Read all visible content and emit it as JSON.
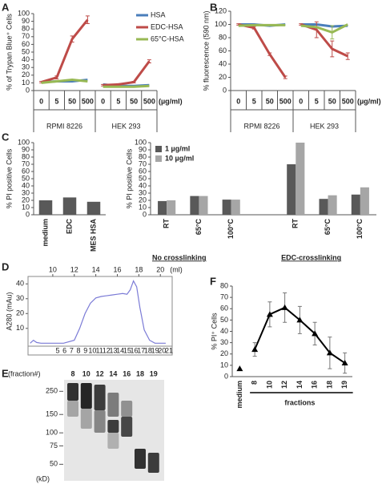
{
  "chart_data": [
    {
      "panel": "A",
      "type": "line",
      "ylabel": "% of Trypan Blue⁺ Cells",
      "categories": [
        "0",
        "5",
        "50",
        "500",
        "0",
        "5",
        "50",
        "500"
      ],
      "groups": [
        "RPMI 8226",
        "HEK 293"
      ],
      "unit": "(µg/ml)",
      "ylim": [
        0,
        100
      ],
      "yticks": [
        0,
        10,
        20,
        30,
        40,
        50,
        60,
        70,
        80,
        90,
        100
      ],
      "legend": "upper right",
      "series": [
        {
          "name": "HSA",
          "color": "#4a7ebb",
          "values": [
            11,
            12,
            12,
            14,
            8,
            6,
            6,
            7
          ]
        },
        {
          "name": "EDC-HSA",
          "color": "#be4b48",
          "values": [
            11,
            17,
            67,
            92,
            7,
            8,
            11,
            38
          ],
          "errors": [
            1,
            2,
            4,
            5,
            1,
            1,
            1,
            2
          ]
        },
        {
          "name": "65°C-HSA",
          "color": "#98b954",
          "values": [
            10,
            12,
            14,
            12,
            5,
            5,
            5,
            6
          ]
        }
      ]
    },
    {
      "panel": "B",
      "type": "line",
      "ylabel": "% fluorescence (590 nm)",
      "categories": [
        "0",
        "5",
        "50",
        "500",
        "0",
        "5",
        "50",
        "500"
      ],
      "groups": [
        "RPMI 8226",
        "HEK 293"
      ],
      "unit": "(µg/ml)",
      "ylim": [
        0,
        120
      ],
      "yticks": [
        0,
        20,
        40,
        60,
        80,
        100,
        120
      ],
      "series": [
        {
          "color": "#4a7ebb",
          "values": [
            100,
            100,
            98,
            100,
            100,
            100,
            97,
            98
          ]
        },
        {
          "color": "#be4b48",
          "values": [
            100,
            95,
            55,
            20,
            100,
            92,
            63,
            52
          ],
          "errors": [
            1,
            2,
            2,
            2,
            1,
            12,
            12,
            5
          ]
        },
        {
          "color": "#98b954",
          "values": [
            98,
            99,
            99,
            99,
            98,
            96,
            88,
            100
          ],
          "errors": [
            null,
            null,
            null,
            null,
            null,
            null,
            10,
            null
          ]
        }
      ]
    },
    {
      "panel": "C",
      "type": "bar",
      "ylabel": "% PI positive Cells",
      "categories": [
        "medium",
        "EDC",
        "MES HSA"
      ],
      "values": [
        20,
        24,
        18
      ],
      "color": "#595959",
      "ylim": [
        0,
        100
      ],
      "yticks": [
        0,
        10,
        20,
        30,
        40,
        50,
        60,
        70,
        80,
        90,
        100
      ]
    },
    {
      "type": "bar",
      "ylabel": "% PI positive Cells",
      "categories": [
        "RT",
        "65°C",
        "100°C",
        "RT",
        "65°C",
        "100°C"
      ],
      "groups": [
        "No crosslinking",
        "EDC-crosslinking"
      ],
      "ylim": [
        0,
        100
      ],
      "yticks": [
        0,
        10,
        20,
        30,
        40,
        50,
        60,
        70,
        80,
        90,
        100
      ],
      "legend": "upper left",
      "series": [
        {
          "name": "1 µg/ml",
          "color": "#595959",
          "values": [
            19,
            26,
            21,
            70,
            22,
            28
          ]
        },
        {
          "name": "10 µg/ml",
          "color": "#a6a6a6",
          "values": [
            20,
            26,
            21,
            100,
            27,
            38
          ]
        }
      ]
    },
    {
      "panel": "D",
      "type": "line",
      "ylabel": "A280 (mAu)",
      "xunit": "(ml)",
      "color": "#7b7bd6",
      "x": [
        7.9,
        8.2,
        8.5,
        8.9,
        9.5,
        11,
        12,
        12.5,
        13,
        13.5,
        14,
        14.5,
        15,
        15.5,
        16,
        16.5,
        16.9,
        17.2,
        17.5,
        17.8,
        18.1,
        18.5,
        19,
        19.5,
        20.5
      ],
      "values": [
        0,
        2,
        0.5,
        0,
        0,
        0,
        2,
        10,
        20,
        27,
        30.5,
        31.5,
        32,
        32.5,
        33,
        33.5,
        33,
        36,
        42,
        38,
        24,
        9,
        2,
        0,
        0
      ],
      "xlim": [
        7.7,
        21.1
      ],
      "xticks": [
        10,
        12,
        14,
        16,
        18,
        20
      ],
      "ylim": [
        -2,
        45
      ],
      "yticks": [
        10,
        20,
        30,
        40
      ],
      "fractions": [
        "5",
        "6",
        "7",
        "8",
        "9",
        "10",
        "11",
        "12",
        "13",
        "14",
        "15",
        "16",
        "17",
        "18",
        "19",
        "20",
        "21"
      ]
    },
    {
      "panel": "E",
      "type": "gel",
      "lane_label": "(fraction#)",
      "lanes": [
        "8",
        "10",
        "12",
        "14",
        "16",
        "18",
        "19"
      ],
      "yticks": [
        250,
        150,
        100,
        75,
        50
      ],
      "ylim": [
        40,
        300
      ],
      "log_scale": true,
      "unit": "(kD)"
    },
    {
      "panel": "F",
      "type": "line",
      "ylabel": "% PI⁺ Cells",
      "categories": [
        "medium",
        "8",
        "10",
        "12",
        "14",
        "16",
        "18",
        "19"
      ],
      "group_label": "fractions",
      "ylim": [
        0,
        80
      ],
      "yticks": [
        0,
        10,
        20,
        30,
        40,
        50,
        60,
        70,
        80
      ],
      "series": [
        {
          "color": "#000000",
          "marker": "triangle",
          "values": [
            7,
            null,
            null,
            null,
            null,
            null,
            null,
            null
          ]
        },
        {
          "color": "#000000",
          "marker": "triangle",
          "values": [
            null,
            24,
            55,
            61,
            50,
            38,
            21,
            12
          ],
          "errors": [
            null,
            6,
            11,
            13,
            12,
            10,
            14,
            9
          ]
        }
      ]
    }
  ]
}
